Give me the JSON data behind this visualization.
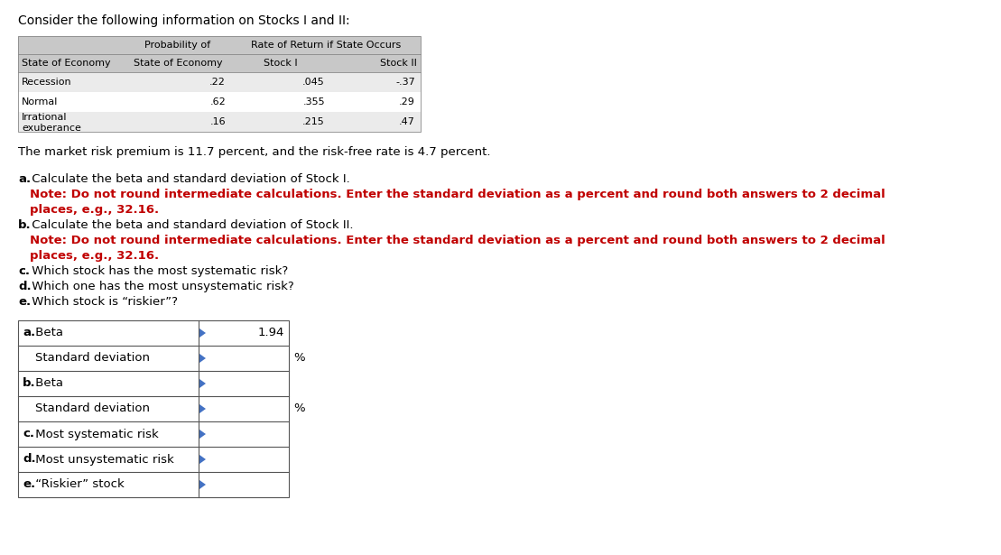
{
  "title": "Consider the following information on Stocks I and II:",
  "background_color": "#ffffff",
  "top_table": {
    "header_row1_col2": "Probability of",
    "header_row1_col34": "Rate of Return if State Occurs",
    "header_row2": [
      "State of Economy",
      "State of Economy",
      "Stock I",
      "Stock II"
    ],
    "rows": [
      [
        "Recession",
        ".22",
        ".045",
        "-.37"
      ],
      [
        "Normal",
        ".62",
        ".355",
        ".29"
      ],
      [
        "Irrational\nexuberance",
        ".16",
        ".215",
        ".47"
      ]
    ],
    "header_bg": "#c8c8c8",
    "row_bg_alt": "#ebebeb",
    "row_bg": "#ffffff"
  },
  "market_text": "The market risk premium is 11.7 percent, and the risk-free rate is 4.7 percent.",
  "answer_table": {
    "rows": [
      {
        "label_bold": "a.",
        "label_rest": " Beta",
        "value": "1.94",
        "suffix": ""
      },
      {
        "label_bold": "",
        "label_rest": "    Standard deviation",
        "value": "",
        "suffix": "%"
      },
      {
        "label_bold": "b.",
        "label_rest": " Beta",
        "value": "",
        "suffix": ""
      },
      {
        "label_bold": "",
        "label_rest": "    Standard deviation",
        "value": "",
        "suffix": "%"
      },
      {
        "label_bold": "c.",
        "label_rest": " Most systematic risk",
        "value": "",
        "suffix": ""
      },
      {
        "label_bold": "d.",
        "label_rest": " Most unsystematic risk",
        "value": "",
        "suffix": ""
      },
      {
        "label_bold": "e.",
        "label_rest": " “Riskier” stock",
        "value": "",
        "suffix": ""
      }
    ],
    "border_color": "#4472c4",
    "row_bg": "#ffffff"
  }
}
